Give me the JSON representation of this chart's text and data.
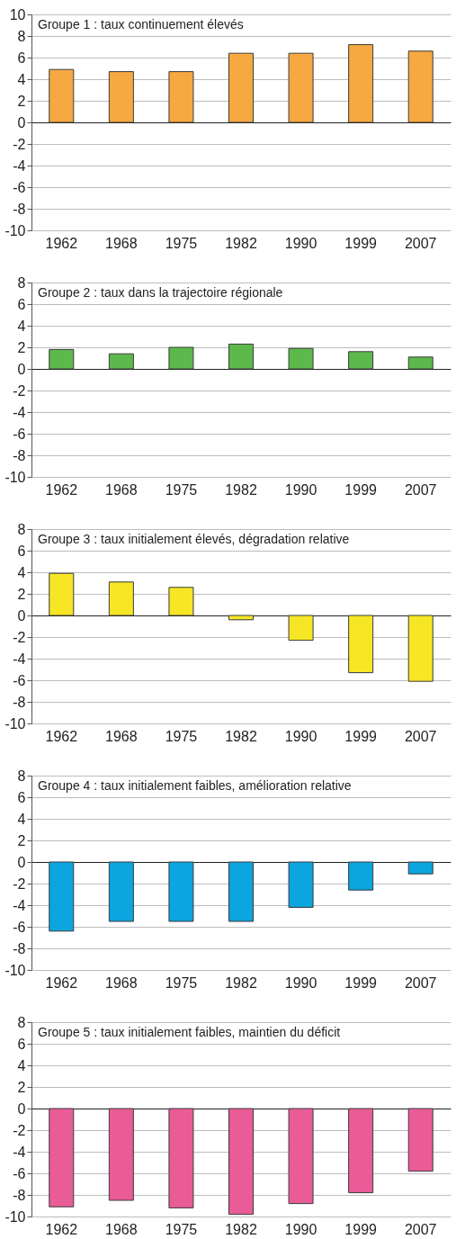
{
  "chart_data": [
    {
      "type": "bar",
      "title": "Groupe 1 : taux continuement élevés",
      "categories": [
        "1962",
        "1968",
        "1975",
        "1982",
        "1990",
        "1999",
        "2007"
      ],
      "values": [
        4.9,
        4.7,
        4.7,
        6.4,
        6.4,
        7.2,
        6.6
      ],
      "color": "#f7a941",
      "ylim": [
        -10,
        10
      ],
      "yticks": [
        -10,
        -8,
        -6,
        -4,
        -2,
        0,
        2,
        4,
        6,
        8,
        10
      ],
      "grid": "y"
    },
    {
      "type": "bar",
      "title": "Groupe 2 : taux dans la trajectoire régionale",
      "categories": [
        "1962",
        "1968",
        "1975",
        "1982",
        "1990",
        "1999",
        "2007"
      ],
      "values": [
        1.8,
        1.4,
        2.0,
        2.3,
        1.9,
        1.6,
        1.1
      ],
      "color": "#5db94c",
      "ylim": [
        -10,
        8
      ],
      "yticks": [
        -10,
        -8,
        -6,
        -4,
        -2,
        0,
        2,
        4,
        6,
        8
      ],
      "grid": "y"
    },
    {
      "type": "bar",
      "title": "Groupe 3 : taux initialement élevés, dégradation relative",
      "categories": [
        "1962",
        "1968",
        "1975",
        "1982",
        "1990",
        "1999",
        "2007"
      ],
      "values": [
        3.9,
        3.1,
        2.6,
        -0.4,
        -2.3,
        -5.3,
        -6.1
      ],
      "color": "#f6e626",
      "ylim": [
        -10,
        8
      ],
      "yticks": [
        -10,
        -8,
        -6,
        -4,
        -2,
        0,
        2,
        4,
        6,
        8
      ],
      "grid": "y"
    },
    {
      "type": "bar",
      "title": "Groupe 4 : taux initialement faibles, amélioration relative",
      "categories": [
        "1962",
        "1968",
        "1975",
        "1982",
        "1990",
        "1999",
        "2007"
      ],
      "values": [
        -6.4,
        -5.5,
        -5.5,
        -5.5,
        -4.2,
        -2.6,
        -1.1
      ],
      "color": "#0ba5df",
      "ylim": [
        -10,
        8
      ],
      "yticks": [
        -10,
        -8,
        -6,
        -4,
        -2,
        0,
        2,
        4,
        6,
        8
      ],
      "grid": "y"
    },
    {
      "type": "bar",
      "title": "Groupe 5 : taux initialement faibles, maintien du déficit",
      "categories": [
        "1962",
        "1968",
        "1975",
        "1982",
        "1990",
        "1999",
        "2007"
      ],
      "values": [
        -9.1,
        -8.5,
        -9.2,
        -9.8,
        -8.8,
        -7.8,
        -5.8
      ],
      "color": "#e95c98",
      "ylim": [
        -10,
        8
      ],
      "yticks": [
        -10,
        -8,
        -6,
        -4,
        -2,
        0,
        2,
        4,
        6,
        8
      ],
      "grid": "y"
    }
  ]
}
